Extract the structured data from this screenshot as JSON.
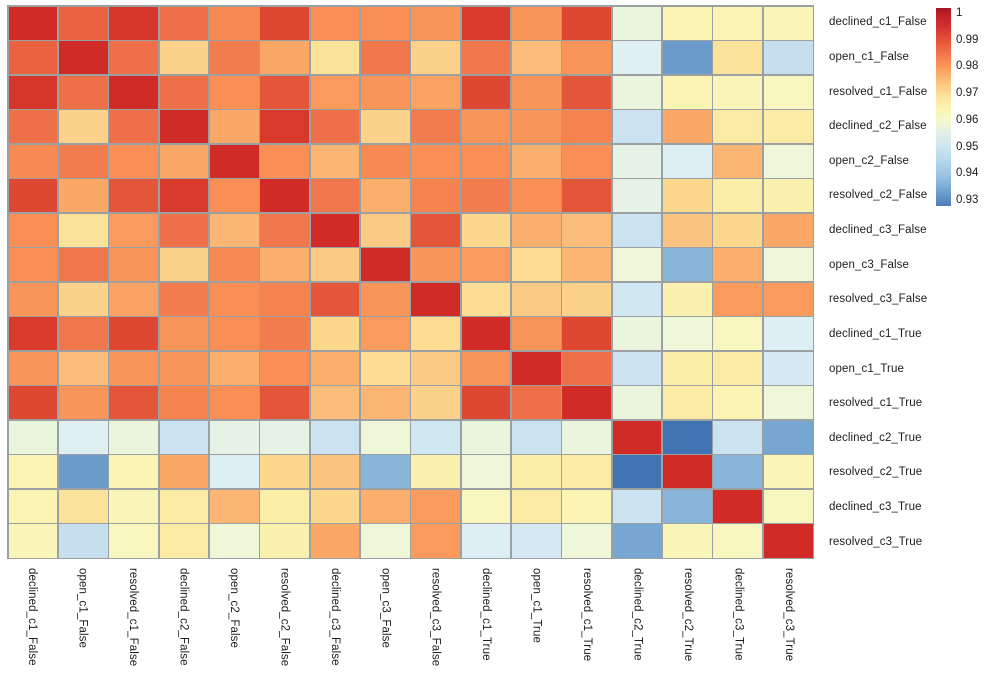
{
  "figure": {
    "background": "#ffffff",
    "grid_line_color": "#9ca0a3",
    "label_color": "#1c1c1c"
  },
  "chart_data": {
    "type": "heatmap",
    "title": "",
    "xlabel": "",
    "ylabel": "",
    "legend_position": "colorbar top-right",
    "grid": "on (gray cell borders)",
    "labels": [
      "declined_c1_False",
      "open_c1_False",
      "resolved_c1_False",
      "declined_c2_False",
      "open_c2_False",
      "resolved_c2_False",
      "declined_c3_False",
      "open_c3_False",
      "resolved_c3_False",
      "declined_c1_True",
      "open_c1_True",
      "resolved_c1_True",
      "declined_c2_True",
      "resolved_c2_True",
      "declined_c3_True",
      "resolved_c3_True"
    ],
    "values": [
      [
        1.0,
        0.987,
        0.993,
        0.986,
        0.982,
        0.989,
        0.981,
        0.981,
        0.98,
        0.99,
        0.98,
        0.989,
        0.957,
        0.963,
        0.963,
        0.962
      ],
      [
        0.987,
        1.0,
        0.986,
        0.971,
        0.984,
        0.977,
        0.968,
        0.985,
        0.971,
        0.985,
        0.974,
        0.98,
        0.954,
        0.934,
        0.968,
        0.949
      ],
      [
        0.993,
        0.986,
        1.0,
        0.986,
        0.981,
        0.988,
        0.979,
        0.98,
        0.978,
        0.989,
        0.98,
        0.988,
        0.957,
        0.963,
        0.962,
        0.961
      ],
      [
        0.986,
        0.971,
        0.986,
        1.0,
        0.977,
        0.991,
        0.986,
        0.971,
        0.984,
        0.98,
        0.98,
        0.983,
        0.95,
        0.977,
        0.966,
        0.966
      ],
      [
        0.982,
        0.984,
        0.981,
        0.977,
        1.0,
        0.981,
        0.975,
        0.982,
        0.981,
        0.981,
        0.976,
        0.981,
        0.956,
        0.953,
        0.975,
        0.958
      ],
      [
        0.989,
        0.977,
        0.988,
        0.991,
        0.981,
        1.0,
        0.985,
        0.976,
        0.983,
        0.984,
        0.981,
        0.988,
        0.956,
        0.97,
        0.965,
        0.964
      ],
      [
        0.981,
        0.968,
        0.979,
        0.986,
        0.975,
        0.985,
        1.0,
        0.972,
        0.988,
        0.97,
        0.976,
        0.974,
        0.95,
        0.973,
        0.97,
        0.977
      ],
      [
        0.981,
        0.985,
        0.98,
        0.971,
        0.982,
        0.976,
        0.972,
        1.0,
        0.98,
        0.979,
        0.969,
        0.975,
        0.958,
        0.939,
        0.976,
        0.958
      ],
      [
        0.98,
        0.971,
        0.978,
        0.984,
        0.981,
        0.983,
        0.988,
        0.98,
        1.0,
        0.969,
        0.972,
        0.971,
        0.951,
        0.964,
        0.979,
        0.979
      ],
      [
        0.99,
        0.985,
        0.989,
        0.98,
        0.981,
        0.984,
        0.97,
        0.979,
        0.969,
        1.0,
        0.98,
        0.989,
        0.957,
        0.958,
        0.961,
        0.953
      ],
      [
        0.98,
        0.974,
        0.98,
        0.98,
        0.976,
        0.981,
        0.976,
        0.969,
        0.972,
        0.98,
        1.0,
        0.986,
        0.95,
        0.965,
        0.966,
        0.952
      ],
      [
        0.989,
        0.98,
        0.988,
        0.983,
        0.981,
        0.988,
        0.974,
        0.975,
        0.971,
        0.989,
        0.986,
        1.0,
        0.957,
        0.966,
        0.963,
        0.958
      ],
      [
        0.957,
        0.954,
        0.957,
        0.95,
        0.956,
        0.956,
        0.95,
        0.958,
        0.951,
        0.957,
        0.95,
        0.957,
        1.0,
        0.928,
        0.95,
        0.936
      ],
      [
        0.963,
        0.934,
        0.963,
        0.977,
        0.953,
        0.97,
        0.973,
        0.939,
        0.964,
        0.958,
        0.965,
        0.966,
        0.928,
        1.0,
        0.939,
        0.962
      ],
      [
        0.963,
        0.968,
        0.962,
        0.966,
        0.975,
        0.965,
        0.97,
        0.976,
        0.979,
        0.961,
        0.966,
        0.963,
        0.95,
        0.939,
        1.0,
        0.961
      ],
      [
        0.962,
        0.949,
        0.961,
        0.966,
        0.958,
        0.964,
        0.977,
        0.958,
        0.979,
        0.953,
        0.952,
        0.958,
        0.936,
        0.962,
        0.961,
        1.0
      ]
    ],
    "colorbar": {
      "tick_labels": [
        "1",
        "0.99",
        "0.98",
        "0.97",
        "0.96",
        "0.95",
        "0.94",
        "0.93"
      ],
      "tick_values": [
        1,
        0.99,
        0.98,
        0.97,
        0.96,
        0.95,
        0.94,
        0.93
      ],
      "vmin": 0.928,
      "vmax": 1.0
    },
    "colorscale": [
      {
        "v": 1.0,
        "c": "#d02b27"
      },
      {
        "v": 0.99,
        "c": "#d93b2b"
      },
      {
        "v": 0.986,
        "c": "#ee7048"
      },
      {
        "v": 0.981,
        "c": "#f98f55"
      },
      {
        "v": 0.9765,
        "c": "#fbab68"
      },
      {
        "v": 0.9735,
        "c": "#fbc07e"
      },
      {
        "v": 0.97,
        "c": "#fcd88d"
      },
      {
        "v": 0.9665,
        "c": "#fbe9a2"
      },
      {
        "v": 0.963,
        "c": "#fbf4b3"
      },
      {
        "v": 0.96,
        "c": "#f8f9c5"
      },
      {
        "v": 0.958,
        "c": "#eef7d8"
      },
      {
        "v": 0.9555,
        "c": "#e4f1e8"
      },
      {
        "v": 0.953,
        "c": "#ddeef5"
      },
      {
        "v": 0.95,
        "c": "#cbe3f0"
      },
      {
        "v": 0.944,
        "c": "#a8cce2"
      },
      {
        "v": 0.9395,
        "c": "#8cb8d9"
      },
      {
        "v": 0.935,
        "c": "#71a1cf"
      },
      {
        "v": 0.931,
        "c": "#5588c0"
      },
      {
        "v": 0.928,
        "c": "#4273b3"
      }
    ]
  }
}
